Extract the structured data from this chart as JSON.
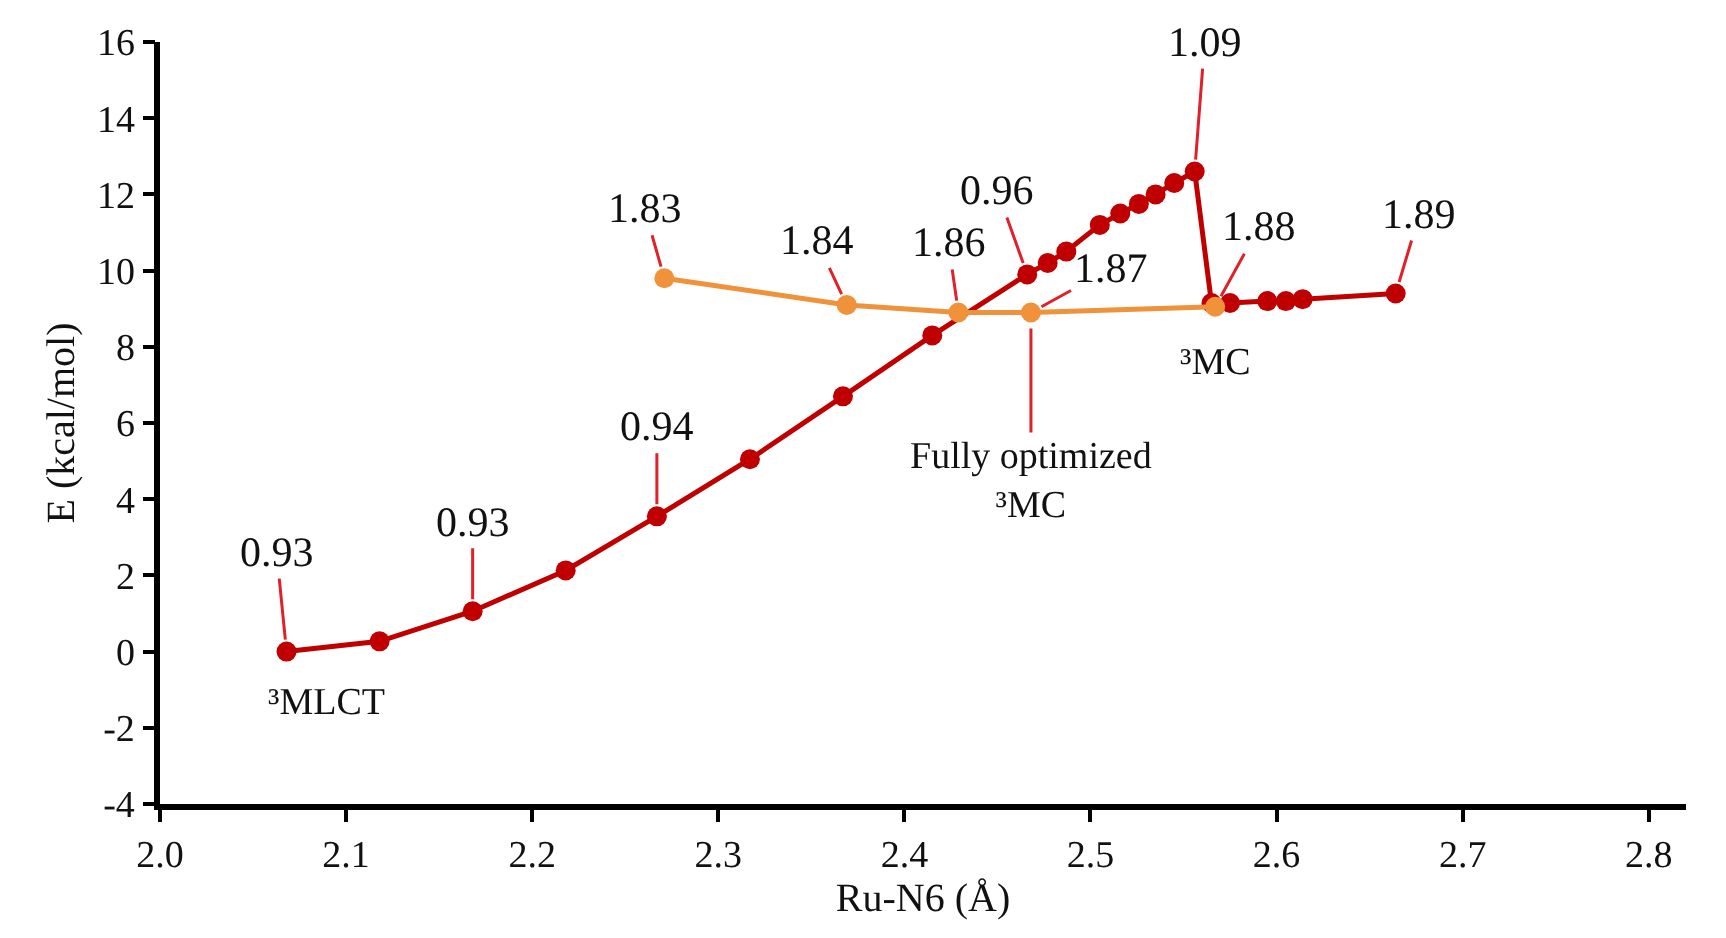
{
  "chart_data": {
    "type": "line",
    "xlabel": "Ru-N6 (Å)",
    "ylabel": "E (kcal/mol)",
    "xlim": [
      2.0,
      2.82
    ],
    "xticks": [
      {
        "value": 2.0,
        "label": "2.0"
      },
      2.1,
      2.2,
      2.3,
      2.4,
      2.5,
      2.6,
      2.7,
      2.8
    ],
    "ylim": [
      -4,
      16
    ],
    "yticks": [
      -4,
      -2,
      0,
      2,
      4,
      6,
      8,
      10,
      12,
      14,
      16
    ],
    "marker": "circle",
    "line_style": "solid",
    "series": [
      {
        "color": "#c00000",
        "x": [
          2.068,
          2.118,
          2.168,
          2.218,
          2.267,
          2.317,
          2.367,
          2.415,
          2.466,
          2.477,
          2.487,
          2.505,
          2.516,
          2.526,
          2.535,
          2.545,
          2.556,
          2.565,
          2.575,
          2.595,
          2.605,
          2.614,
          2.664
        ],
        "values": [
          0,
          0.27,
          1.06,
          2.13,
          3.55,
          5.05,
          6.7,
          8.3,
          9.9,
          10.2,
          10.5,
          11.2,
          11.5,
          11.75,
          12.0,
          12.3,
          12.6,
          9.15,
          9.15,
          9.2,
          9.2,
          9.25,
          9.4
        ]
      },
      {
        "color": "#f0923a",
        "x": [
          2.271,
          2.369,
          2.429,
          2.468,
          2.567
        ],
        "values": [
          9.8,
          9.1,
          8.9,
          8.9,
          9.05
        ]
      }
    ],
    "annotations": [
      {
        "text": "0.93",
        "x": 2.068,
        "y": 0
      },
      {
        "text": "0.93",
        "x": 2.168,
        "y": 1.06
      },
      {
        "text": "0.94",
        "x": 2.267,
        "y": 3.55
      },
      {
        "text": "0.96",
        "x": 2.466,
        "y": 9.9
      },
      {
        "text": "1.09",
        "x": 2.556,
        "y": 12.6
      },
      {
        "text": "1.89",
        "x": 2.664,
        "y": 9.4
      },
      {
        "text": "1.83",
        "x": 2.271,
        "y": 9.8
      },
      {
        "text": "1.84",
        "x": 2.369,
        "y": 9.1
      },
      {
        "text": "1.86",
        "x": 2.429,
        "y": 8.9
      },
      {
        "text": "1.87",
        "x": 2.468,
        "y": 8.9
      },
      {
        "text": "1.88",
        "x": 2.567,
        "y": 9.05
      },
      {
        "text": "³MLCT",
        "x": 2.068,
        "y": 0
      },
      {
        "text": "³MC",
        "x": 2.567,
        "y": 9.05
      },
      {
        "text": "Fully optimized\n³MC",
        "x": 2.468,
        "y": 8.9
      }
    ]
  }
}
